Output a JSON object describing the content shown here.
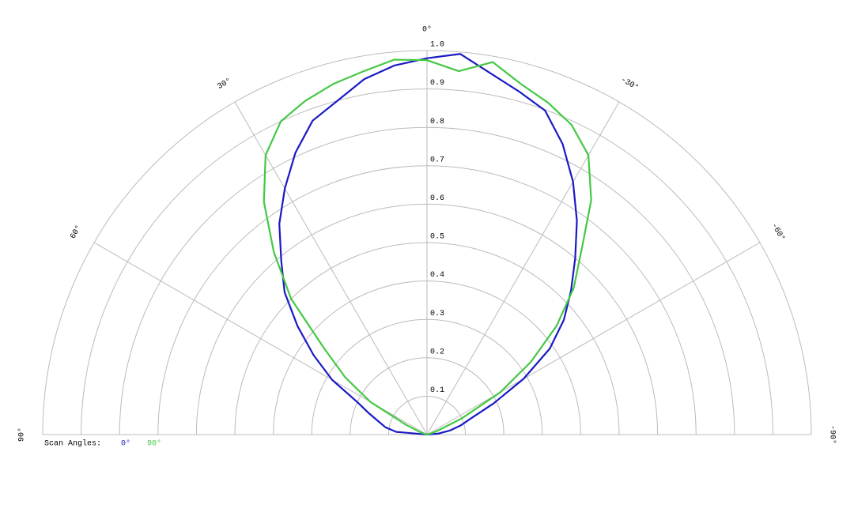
{
  "chart_data": {
    "type": "polar",
    "legend_title": "Scan Angles:",
    "x": [
      90,
      85,
      80,
      75,
      70,
      65,
      60,
      55,
      50,
      45,
      40,
      35,
      30,
      25,
      20,
      15,
      10,
      5,
      0,
      -5,
      -10,
      -15,
      -20,
      -25,
      -30,
      -35,
      -40,
      -45,
      -50,
      -55,
      -60,
      -65,
      -70,
      -75,
      -80,
      -85,
      -90
    ],
    "series": [
      {
        "name": "0°",
        "color": "#1a1ac4",
        "values": [
          0,
          0.08,
          0.11,
          0.13,
          0.16,
          0.2,
          0.285,
          0.36,
          0.44,
          0.524,
          0.59,
          0.67,
          0.74,
          0.81,
          0.87,
          0.9,
          0.94,
          0.965,
          0.98,
          0.995,
          0.955,
          0.925,
          0.898,
          0.835,
          0.76,
          0.68,
          0.6,
          0.53,
          0.465,
          0.39,
          0.29,
          0.19,
          0.12,
          0.09,
          0.06,
          0.03,
          0
        ]
      },
      {
        "name": "90°",
        "color": "#44c844",
        "values": [
          0,
          0,
          0,
          0.005,
          0.02,
          0.06,
          0.17,
          0.26,
          0.35,
          0.5,
          0.62,
          0.74,
          0.84,
          0.9,
          0.925,
          0.945,
          0.96,
          0.98,
          0.975,
          0.95,
          0.985,
          0.945,
          0.92,
          0.89,
          0.84,
          0.745,
          0.625,
          0.54,
          0.44,
          0.33,
          0.22,
          0.1,
          0.03,
          0.01,
          0,
          0,
          0
        ]
      }
    ],
    "xlim": [
      -90,
      90
    ],
    "xticks": [
      {
        "value": 90,
        "label": "90°"
      },
      {
        "value": 60,
        "label": "60°"
      },
      {
        "value": 30,
        "label": "30°"
      },
      {
        "value": 0,
        "label": "0°"
      },
      {
        "value": -30,
        "label": "-30°"
      },
      {
        "value": -60,
        "label": "-60°"
      },
      {
        "value": -90,
        "label": "-90°"
      }
    ],
    "ylim": [
      0,
      1
    ],
    "yticks": [
      0.1,
      0.2,
      0.3,
      0.4,
      0.5,
      0.6,
      0.7,
      0.8,
      0.9,
      {
        "value": 1,
        "label": "1.0"
      }
    ]
  }
}
